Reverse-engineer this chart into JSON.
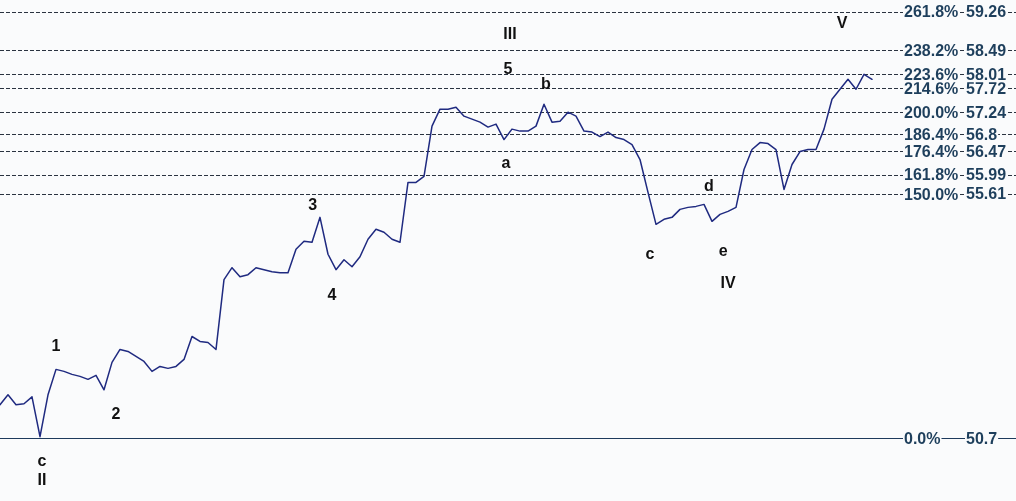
{
  "chart_data": {
    "type": "line",
    "categories": [
      null,
      null,
      null,
      null,
      null,
      null,
      null,
      null,
      null,
      null,
      null,
      null,
      null,
      null,
      null,
      null,
      null,
      null,
      null,
      null,
      null,
      null,
      null,
      null,
      null,
      null,
      null,
      null,
      null,
      null,
      null,
      null,
      null,
      null,
      null,
      null,
      null,
      null,
      null,
      null,
      null,
      null,
      null,
      null,
      null,
      null,
      null,
      null,
      null,
      null,
      null,
      null,
      null,
      null,
      null,
      null,
      null,
      null,
      null,
      null,
      null,
      null,
      null,
      null,
      null,
      null,
      null,
      null,
      null,
      null,
      null,
      null,
      null,
      null,
      null,
      null,
      null,
      null,
      null,
      null,
      null,
      null,
      null,
      null,
      null,
      null,
      null,
      null,
      null,
      null,
      null,
      null,
      null,
      null,
      null,
      null,
      null,
      null,
      null,
      null,
      null,
      null,
      null,
      null,
      null,
      null,
      null,
      null,
      null,
      null,
      null,
      null,
      null,
      null,
      null,
      null,
      null,
      null,
      null,
      null,
      null,
      null,
      null,
      null,
      null,
      null,
      null,
      null
    ],
    "values": [
      51.38,
      51.58,
      51.38,
      51.4,
      51.54,
      50.74,
      51.58,
      52.09,
      52.05,
      51.99,
      51.95,
      51.89,
      51.97,
      51.68,
      52.23,
      52.49,
      52.45,
      52.35,
      52.25,
      52.05,
      52.15,
      52.11,
      52.15,
      52.29,
      52.75,
      52.65,
      52.63,
      52.49,
      53.89,
      54.13,
      53.95,
      53.99,
      54.13,
      54.09,
      54.05,
      54.03,
      54.03,
      54.5,
      54.66,
      54.64,
      55.14,
      54.4,
      54.09,
      54.29,
      54.15,
      54.35,
      54.7,
      54.9,
      54.84,
      54.7,
      54.64,
      55.84,
      55.84,
      55.96,
      56.97,
      57.31,
      57.31,
      57.35,
      57.17,
      57.11,
      57.05,
      56.95,
      57.01,
      56.7,
      56.91,
      56.87,
      56.87,
      56.97,
      57.41,
      57.05,
      57.07,
      57.25,
      57.17,
      56.87,
      56.85,
      56.76,
      56.85,
      56.74,
      56.7,
      56.6,
      56.3,
      55.64,
      55.0,
      55.1,
      55.14,
      55.3,
      55.34,
      55.36,
      55.4,
      55.06,
      55.2,
      55.26,
      55.34,
      56.1,
      56.5,
      56.64,
      56.62,
      56.5,
      55.7,
      56.2,
      56.46,
      56.5,
      56.5,
      56.91,
      57.51,
      57.71,
      57.91,
      57.71,
      58.01,
      57.91,
      null,
      null,
      null,
      null,
      null,
      null,
      null,
      null,
      null,
      null,
      null,
      null,
      null,
      null,
      null,
      null,
      null,
      null
    ],
    "color": "#1f2a80",
    "ylim": [
      49.45,
      59.5
    ],
    "yticks": [
      50.7,
      55.61,
      55.99,
      56.47,
      56.8,
      57.24,
      57.72,
      58.01,
      58.49,
      59.26
    ],
    "y2lim": [
      -38.2,
      269.1
    ],
    "y2ticks": [
      {
        "value": 0,
        "label": "0.0%"
      },
      {
        "value": 150,
        "label": "150.0%"
      },
      {
        "value": 161.8,
        "label": "161.8%"
      },
      {
        "value": 176.4,
        "label": "176.4%"
      },
      {
        "value": 186.4,
        "label": "186.4%"
      },
      {
        "value": 200,
        "label": "200.0%"
      },
      {
        "value": 214.6,
        "label": "214.6%"
      },
      {
        "value": 223.6,
        "label": "223.6%"
      },
      {
        "value": 238.2,
        "label": "238.2%"
      },
      {
        "value": 261.8,
        "label": "261.8%"
      }
    ],
    "tick_labels": "y",
    "ref_lines": [
      {
        "axis": "y",
        "value": 59.26,
        "line_style": "dashed",
        "color": "#2a3340"
      },
      {
        "axis": "y",
        "value": 58.49,
        "line_style": "dashed",
        "color": "#2a3340"
      },
      {
        "axis": "y",
        "value": 58.01,
        "line_style": "dashed",
        "color": "#2a3340"
      },
      {
        "axis": "y",
        "value": 57.72,
        "line_style": "dashed",
        "color": "#2a3340"
      },
      {
        "axis": "y",
        "value": 57.24,
        "line_style": "dashed",
        "color": "#2a3340"
      },
      {
        "axis": "y",
        "value": 56.8,
        "line_style": "dashed",
        "color": "#2a3340"
      },
      {
        "axis": "y",
        "value": 56.47,
        "line_style": "dashed",
        "color": "#2a3340"
      },
      {
        "axis": "y",
        "value": 55.99,
        "line_style": "dashed",
        "color": "#2a3340"
      },
      {
        "axis": "y",
        "value": 55.61,
        "line_style": "dashed",
        "color": "#2a3340"
      },
      {
        "axis": "y",
        "value": 50.7,
        "line_style": "solid",
        "color": "#1d3a5c"
      }
    ],
    "annotations": [
      "c",
      "II",
      "1",
      "2",
      "3",
      "4",
      "III",
      "5",
      "a",
      "b",
      "c",
      "d",
      "e",
      "IV",
      "V"
    ]
  }
}
